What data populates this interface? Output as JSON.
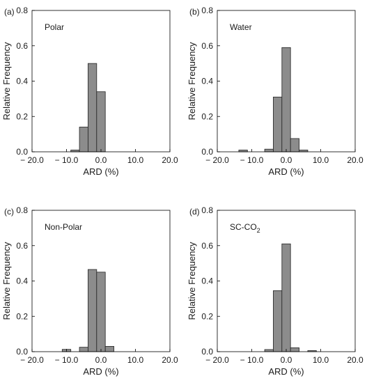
{
  "chart_data": [
    {
      "type": "bar",
      "panel_label": "(a)",
      "annotation": "Polar",
      "annotation_sub": "",
      "xlabel": "ARD (%)",
      "ylabel": "Relative Frequency",
      "xlim": [
        -20,
        20
      ],
      "ylim": [
        0,
        0.8
      ],
      "xticks": [
        "− 20.0",
        "− 10.0",
        "0.0",
        "10.0",
        "20.0"
      ],
      "yticks": [
        "0.0",
        "0.2",
        "0.4",
        "0.6",
        "0.8"
      ],
      "bin_width": 2.5,
      "bars": [
        {
          "x": -7.5,
          "value": 0.01
        },
        {
          "x": -5.0,
          "value": 0.14
        },
        {
          "x": -2.5,
          "value": 0.5
        },
        {
          "x": 0.0,
          "value": 0.34
        }
      ]
    },
    {
      "type": "bar",
      "panel_label": "(b)",
      "annotation": "Water",
      "annotation_sub": "",
      "xlabel": "ARD (%)",
      "ylabel": "Relative Frequency",
      "xlim": [
        -20,
        20
      ],
      "ylim": [
        0,
        0.8
      ],
      "xticks": [
        "− 20.0",
        "− 10.0",
        "0.0",
        "10.0",
        "20.0"
      ],
      "yticks": [
        "0.0",
        "0.2",
        "0.4",
        "0.6",
        "0.8"
      ],
      "bin_width": 2.5,
      "bars": [
        {
          "x": -12.5,
          "value": 0.01
        },
        {
          "x": -5.0,
          "value": 0.015
        },
        {
          "x": -2.5,
          "value": 0.31
        },
        {
          "x": 0.0,
          "value": 0.59
        },
        {
          "x": 2.5,
          "value": 0.075
        },
        {
          "x": 5.0,
          "value": 0.01
        }
      ]
    },
    {
      "type": "bar",
      "panel_label": "(c)",
      "annotation": "Non-Polar",
      "annotation_sub": "",
      "xlabel": "ARD (%)",
      "ylabel": "Relative Frequency",
      "xlim": [
        -20,
        20
      ],
      "ylim": [
        0,
        0.8
      ],
      "xticks": [
        "− 20.0",
        "− 10.0",
        "0.0",
        "10.0",
        "20.0"
      ],
      "yticks": [
        "0.0",
        "0.2",
        "0.4",
        "0.6",
        "0.8"
      ],
      "bin_width": 2.5,
      "bars": [
        {
          "x": -10.0,
          "value": 0.013
        },
        {
          "x": -5.0,
          "value": 0.025
        },
        {
          "x": -2.5,
          "value": 0.465
        },
        {
          "x": 0.0,
          "value": 0.45
        },
        {
          "x": 2.5,
          "value": 0.03
        }
      ]
    },
    {
      "type": "bar",
      "panel_label": "(d)",
      "annotation": "SC-CO",
      "annotation_sub": "2",
      "xlabel": "ARD (%)",
      "ylabel": "Relative Frequency",
      "xlim": [
        -20,
        20
      ],
      "ylim": [
        0,
        0.8
      ],
      "xticks": [
        "− 20.0",
        "− 10.0",
        "0.0",
        "10.0",
        "20.0"
      ],
      "yticks": [
        "0.0",
        "0.2",
        "0.4",
        "0.6",
        "0.8"
      ],
      "bin_width": 2.5,
      "bars": [
        {
          "x": -5.0,
          "value": 0.012
        },
        {
          "x": -2.5,
          "value": 0.345
        },
        {
          "x": 0.0,
          "value": 0.61
        },
        {
          "x": 2.5,
          "value": 0.022
        },
        {
          "x": 7.5,
          "value": 0.006
        }
      ]
    }
  ]
}
